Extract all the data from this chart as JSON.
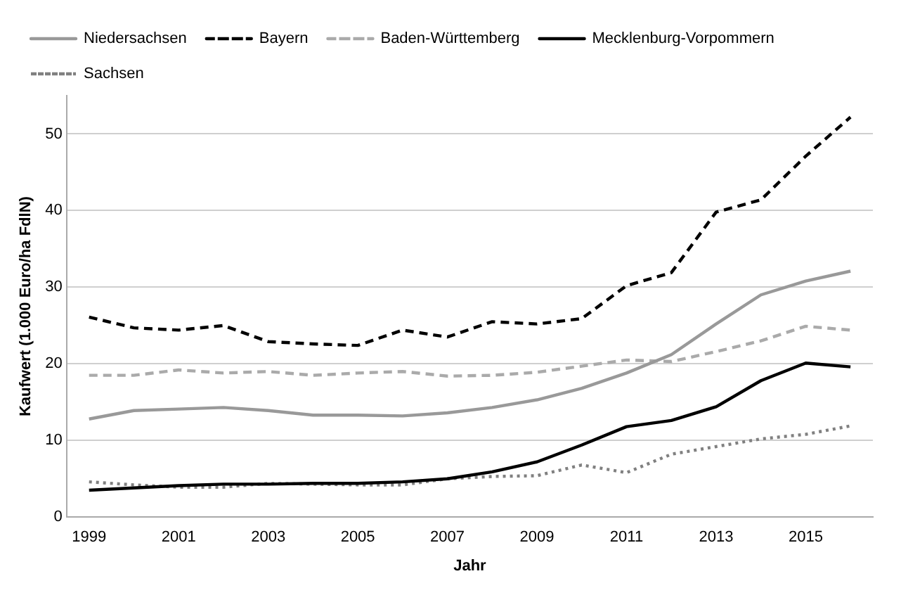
{
  "chart_data": {
    "type": "line",
    "xlabel": "Jahr",
    "ylabel": "Kaufwert (1.000 Euro/ha FdlN)",
    "x": [
      1999,
      2000,
      2001,
      2002,
      2003,
      2004,
      2005,
      2006,
      2007,
      2008,
      2009,
      2010,
      2011,
      2012,
      2013,
      2014,
      2015,
      2016
    ],
    "series": [
      {
        "name": "Niedersachsen",
        "color": "#999999",
        "line_style": "solid",
        "values": [
          12.8,
          13.9,
          14.1,
          14.3,
          13.9,
          13.3,
          13.3,
          13.2,
          13.6,
          14.3,
          15.3,
          16.8,
          18.8,
          21.2,
          25.2,
          29,
          30.8,
          32.1
        ]
      },
      {
        "name": "Bayern",
        "color": "#000000",
        "line_style": "dashed",
        "values": [
          26.1,
          24.7,
          24.4,
          25,
          22.9,
          22.6,
          22.4,
          24.4,
          23.5,
          25.5,
          25.2,
          25.9,
          30.2,
          31.9,
          39.8,
          41.4,
          47.1,
          52.2
        ]
      },
      {
        "name": "Baden-Württemberg",
        "color": "#aaaaaa",
        "line_style": "dashed",
        "values": [
          18.5,
          18.5,
          19.2,
          18.8,
          19,
          18.5,
          18.8,
          19,
          18.4,
          18.5,
          18.9,
          19.7,
          20.5,
          20.3,
          21.6,
          23,
          24.9,
          24.4
        ]
      },
      {
        "name": "Mecklenburg-Vorpommern",
        "color": "#000000",
        "line_style": "solid",
        "values": [
          3.5,
          3.8,
          4.1,
          4.3,
          4.3,
          4.4,
          4.4,
          4.6,
          5,
          5.9,
          7.2,
          9.4,
          11.8,
          12.6,
          14.4,
          17.8,
          20.1,
          19.6
        ]
      },
      {
        "name": "Sachsen",
        "color": "#808080",
        "line_style": "dotted",
        "values": [
          4.6,
          4.2,
          3.9,
          3.9,
          4.4,
          4.3,
          4.2,
          4.2,
          5,
          5.3,
          5.4,
          6.8,
          5.8,
          8.2,
          9.2,
          10.2,
          10.8,
          11.9
        ]
      }
    ],
    "xlim": [
      1998.5,
      2016.5
    ],
    "xticks": [
      1999,
      2001,
      2003,
      2005,
      2007,
      2009,
      2011,
      2013,
      2015
    ],
    "ylim": [
      0,
      55
    ],
    "yticks": [
      0,
      10,
      20,
      30,
      40,
      50
    ],
    "grid": "y",
    "legend": "top",
    "marker": "none"
  }
}
